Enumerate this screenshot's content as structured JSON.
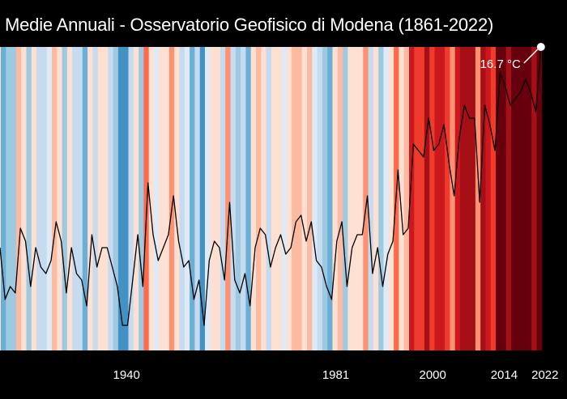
{
  "chart_data": {
    "type": "line",
    "title": "Medie Annuali - Osservatorio Geofisico di Modena (1861-2022)",
    "xlabel": "",
    "ylabel": "",
    "background": "warming-stripes",
    "x_start": 1916,
    "x_end": 2022,
    "x_ticks": [
      "1940",
      "1981",
      "2000",
      "2014",
      "2022"
    ],
    "grid": false,
    "values": [
      13.6,
      12.8,
      13.0,
      12.9,
      13.9,
      13.7,
      13.0,
      13.6,
      13.3,
      13.2,
      13.4,
      14.0,
      13.7,
      12.9,
      13.6,
      13.2,
      13.1,
      12.7,
      13.8,
      13.3,
      13.6,
      13.6,
      13.3,
      13.0,
      12.4,
      12.4,
      13.1,
      13.8,
      13.0,
      14.6,
      13.8,
      13.4,
      13.6,
      13.8,
      14.4,
      13.7,
      13.3,
      13.4,
      12.8,
      13.1,
      12.4,
      13.4,
      13.7,
      13.6,
      13.1,
      14.3,
      13.1,
      12.9,
      13.2,
      12.7,
      13.6,
      13.9,
      13.8,
      13.3,
      13.6,
      13.8,
      13.5,
      13.6,
      14.0,
      14.1,
      13.7,
      14.0,
      13.4,
      13.3,
      13.0,
      12.8,
      13.7,
      14.0,
      13.0,
      13.6,
      13.8,
      13.8,
      14.4,
      13.2,
      13.6,
      13.0,
      13.5,
      13.7,
      14.8,
      13.8,
      13.9,
      15.2,
      15.1,
      15.0,
      15.6,
      15.1,
      15.2,
      15.5,
      14.9,
      14.4,
      15.3,
      15.8,
      15.6,
      15.6,
      14.3,
      15.8,
      15.5,
      15.1,
      16.3,
      16.1,
      15.8,
      15.9,
      16.0,
      16.2,
      16.0,
      15.7,
      16.7
    ],
    "unit": "°C",
    "annotation": "16.7 °C",
    "line_color": "#000000",
    "palette_cold": [
      "#deebf7",
      "#c6dbef",
      "#9ecae1",
      "#6baed6",
      "#4292c6",
      "#2171b5",
      "#08519c",
      "#08306b"
    ],
    "palette_warm": [
      "#fee0d2",
      "#fcbba1",
      "#fc9272",
      "#fb6a4a",
      "#ef3b2c",
      "#cb181d",
      "#a50f15",
      "#67000d"
    ]
  }
}
